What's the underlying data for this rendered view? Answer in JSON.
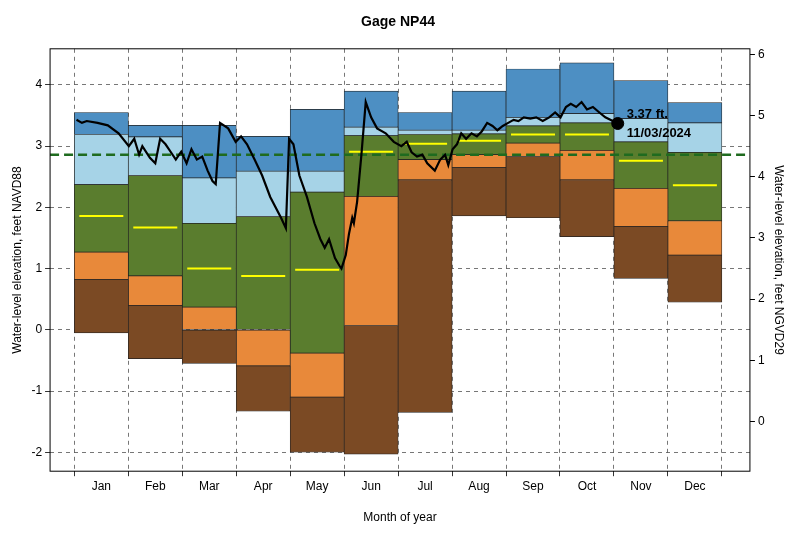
{
  "chart_data": {
    "type": "band_line",
    "title": "Gage NP44",
    "x_label": "Month of year",
    "y_label": "Water-level elevation, feet NAVD88",
    "y2_label": "Water-level elevation, feet NGVD29",
    "xlim": [
      -0.45,
      12.52
    ],
    "xticks": [
      {
        "value": 0.5,
        "label": "Jan"
      },
      {
        "value": 1.5,
        "label": "Feb"
      },
      {
        "value": 2.5,
        "label": "Mar"
      },
      {
        "value": 3.5,
        "label": "Apr"
      },
      {
        "value": 4.5,
        "label": "May"
      },
      {
        "value": 5.5,
        "label": "Jun"
      },
      {
        "value": 6.5,
        "label": "Jul"
      },
      {
        "value": 7.5,
        "label": "Aug"
      },
      {
        "value": 8.5,
        "label": "Sep"
      },
      {
        "value": 9.5,
        "label": "Oct"
      },
      {
        "value": 10.5,
        "label": "Nov"
      },
      {
        "value": 11.5,
        "label": "Dec"
      }
    ],
    "ylim": [
      -2.31,
      4.59
    ],
    "yticks": [
      -2,
      -1,
      0,
      1,
      2,
      3,
      4
    ],
    "y2lim": [
      -0.81,
      6.09
    ],
    "y2ticks": [
      0,
      1,
      2,
      3,
      4,
      5,
      6
    ],
    "grid": true,
    "bands": [
      {
        "color": "#7b4a24",
        "ranges": [
          [
            -0.05,
            0.82
          ],
          [
            -0.47,
            0.4
          ],
          [
            -0.55,
            0.0
          ],
          [
            -1.33,
            -0.59
          ],
          [
            -2.0,
            -1.1
          ],
          [
            -2.03,
            0.07
          ],
          [
            -1.35,
            2.45
          ],
          [
            1.86,
            2.65
          ],
          [
            1.83,
            2.83
          ],
          [
            1.52,
            2.45
          ],
          [
            0.84,
            1.69
          ],
          [
            0.45,
            1.22
          ]
        ]
      },
      {
        "color": "#e8893a",
        "ranges": [
          [
            0.82,
            1.27
          ],
          [
            0.4,
            0.88
          ],
          [
            0.0,
            0.37
          ],
          [
            -0.59,
            0.0
          ],
          [
            -1.1,
            -0.38
          ],
          [
            0.07,
            2.18
          ],
          [
            2.45,
            2.78
          ],
          [
            2.65,
            2.86
          ],
          [
            2.83,
            3.05
          ],
          [
            2.45,
            2.93
          ],
          [
            1.69,
            2.31
          ],
          [
            1.22,
            1.78
          ]
        ]
      },
      {
        "color": "#5a7d2e",
        "ranges": [
          [
            1.27,
            2.37
          ],
          [
            0.88,
            2.52
          ],
          [
            0.37,
            1.74
          ],
          [
            0.0,
            1.85
          ],
          [
            -0.38,
            2.25
          ],
          [
            2.18,
            3.17
          ],
          [
            2.78,
            3.19
          ],
          [
            2.86,
            3.2
          ],
          [
            3.05,
            3.33
          ],
          [
            2.93,
            3.38
          ],
          [
            2.31,
            3.07
          ],
          [
            1.78,
            2.9
          ]
        ]
      },
      {
        "color": "#a6d3e7",
        "ranges": [
          [
            2.37,
            3.19
          ],
          [
            2.52,
            3.15
          ],
          [
            1.74,
            2.48
          ],
          [
            1.85,
            2.59
          ],
          [
            2.25,
            2.59
          ],
          [
            3.17,
            3.31
          ],
          [
            3.19,
            3.26
          ],
          [
            3.2,
            3.26
          ],
          [
            3.33,
            3.47
          ],
          [
            3.38,
            3.53
          ],
          [
            3.07,
            3.45
          ],
          [
            2.9,
            3.38
          ]
        ]
      },
      {
        "color": "#4d8fc3",
        "ranges": [
          [
            3.19,
            3.55
          ],
          [
            3.15,
            3.34
          ],
          [
            2.48,
            3.34
          ],
          [
            2.59,
            3.16
          ],
          [
            2.59,
            3.6
          ],
          [
            3.31,
            3.9
          ],
          [
            3.26,
            3.55
          ],
          [
            3.26,
            3.9
          ],
          [
            3.47,
            4.26
          ],
          [
            3.53,
            4.36
          ],
          [
            3.45,
            4.07
          ],
          [
            3.38,
            3.71
          ]
        ]
      }
    ],
    "median": {
      "color": "#ffff00",
      "values": [
        1.86,
        1.67,
        1.0,
        0.88,
        0.98,
        2.91,
        3.04,
        3.09,
        3.19,
        3.19,
        2.76,
        2.36
      ]
    },
    "reference_line": {
      "color": "#1f6b1f",
      "line_style": "dashed",
      "value": 2.86
    },
    "series": [
      {
        "color": "#000000",
        "line_style": "solid",
        "x": [
          0.04,
          0.14,
          0.23,
          0.43,
          0.62,
          0.82,
          1.01,
          1.11,
          1.2,
          1.26,
          1.4,
          1.5,
          1.59,
          1.69,
          1.79,
          1.88,
          1.98,
          2.08,
          2.17,
          2.27,
          2.37,
          2.47,
          2.56,
          2.62,
          2.7,
          2.85,
          2.99,
          3.09,
          3.2,
          3.34,
          3.48,
          3.63,
          3.83,
          3.92,
          3.98,
          4.06,
          4.17,
          4.31,
          4.45,
          4.56,
          4.64,
          4.72,
          4.83,
          4.91,
          4.95,
          5.03,
          5.09,
          5.15,
          5.18,
          5.24,
          5.32,
          5.4,
          5.5,
          5.61,
          5.77,
          5.92,
          6.06,
          6.16,
          6.25,
          6.35,
          6.45,
          6.54,
          6.68,
          6.78,
          6.87,
          6.93,
          7.01,
          7.09,
          7.17,
          7.26,
          7.36,
          7.46,
          7.55,
          7.65,
          7.75,
          7.84,
          7.94,
          8.04,
          8.14,
          8.23,
          8.33,
          8.45,
          8.56,
          8.68,
          8.8,
          8.91,
          9.01,
          9.11,
          9.2,
          9.3,
          9.4,
          9.5,
          9.61,
          9.73,
          9.84,
          9.98,
          10.07
        ],
        "values": [
          3.43,
          3.38,
          3.41,
          3.38,
          3.34,
          3.21,
          3.0,
          3.12,
          2.86,
          3.0,
          2.81,
          2.72,
          3.12,
          3.03,
          2.9,
          2.78,
          2.91,
          2.72,
          2.95,
          2.78,
          2.83,
          2.6,
          2.43,
          2.38,
          3.38,
          3.29,
          3.07,
          3.16,
          3.03,
          2.78,
          2.52,
          2.17,
          1.83,
          1.66,
          3.12,
          3.03,
          2.52,
          2.17,
          1.74,
          1.48,
          1.34,
          1.48,
          1.17,
          1.05,
          1.0,
          1.22,
          1.57,
          1.83,
          1.74,
          2.09,
          2.86,
          3.72,
          3.47,
          3.29,
          3.21,
          3.07,
          3.0,
          3.07,
          2.9,
          2.83,
          2.86,
          2.72,
          2.6,
          2.78,
          2.86,
          2.69,
          2.95,
          3.03,
          3.21,
          3.12,
          3.21,
          3.16,
          3.24,
          3.38,
          3.33,
          3.26,
          3.33,
          3.38,
          3.43,
          3.41,
          3.47,
          3.45,
          3.47,
          3.41,
          3.47,
          3.55,
          3.47,
          3.64,
          3.69,
          3.64,
          3.72,
          3.6,
          3.64,
          3.55,
          3.47,
          3.41,
          3.37
        ]
      }
    ],
    "annotation": {
      "x": 10.07,
      "y": 3.37,
      "marker": "circle",
      "color": "#000000",
      "text": [
        "3.37 ft.",
        "11/03/2024"
      ]
    }
  }
}
